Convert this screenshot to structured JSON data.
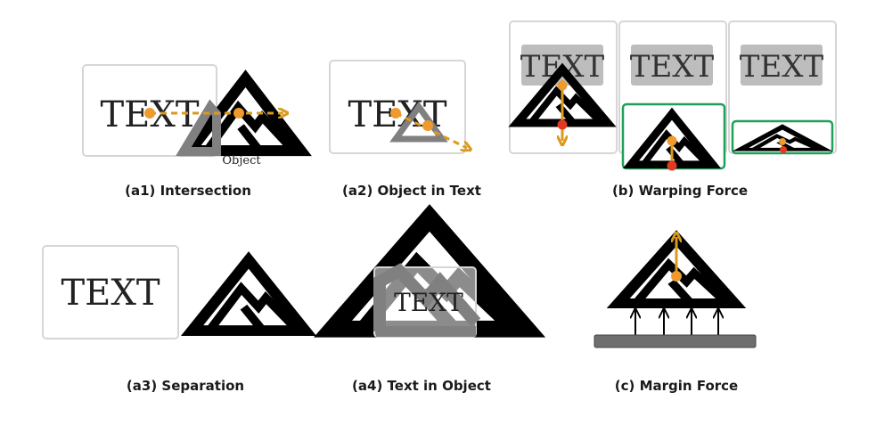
{
  "box_text": "TEXT",
  "object_label": "Object",
  "captions": {
    "a1": "(a1) Intersection",
    "a2": "(a2) Object in Text",
    "b": "(b) Warping Force",
    "a3": "(a3) Separation",
    "a4": "(a4) Text in Object",
    "c": "(c) Margin Force"
  },
  "colors": {
    "force_arrow": "#D99A1E",
    "center_dot": "#EE9A2D",
    "contact_dot": "#E03A22",
    "highlight_box": "#1FA05A",
    "text_box_border": "#D6D6D6",
    "text_fill": "#BDBDBD",
    "mountain": "#000000",
    "mountain_overlap": "#808080",
    "ground": "#6E6E6E"
  }
}
